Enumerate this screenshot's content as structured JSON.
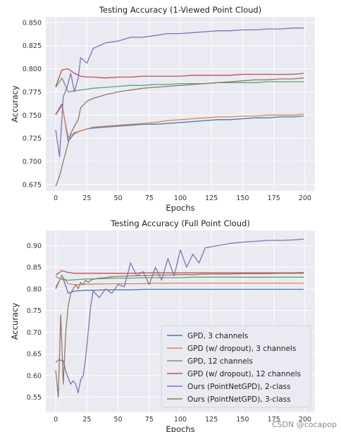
{
  "colors": {
    "bg": "#eaeaf2",
    "grid": "#ffffff",
    "series": [
      "#4c72b0",
      "#dd8452",
      "#55a868",
      "#c44e52",
      "#8172b3",
      "#937860"
    ]
  },
  "watermark": "CSDN @cocapop",
  "chart_data": [
    {
      "type": "line",
      "title": "Testing Accuracy (1-Viewed Point Cloud)",
      "xlabel": "Epochs",
      "ylabel": "Accuracy",
      "xlim": [
        -8,
        208
      ],
      "ylim": [
        0.668,
        0.856
      ],
      "xticks": [
        0,
        25,
        50,
        75,
        100,
        125,
        150,
        175,
        200
      ],
      "xtick_labels": [
        "0",
        "25",
        "50",
        "75",
        "100",
        "125",
        "150",
        "175",
        "200"
      ],
      "yticks": [
        0.675,
        0.7,
        0.725,
        0.75,
        0.775,
        0.8,
        0.825,
        0.85
      ],
      "ytick_labels": [
        "0.675",
        "0.700",
        "0.725",
        "0.750",
        "0.775",
        "0.800",
        "0.825",
        "0.850"
      ],
      "grid": true,
      "legend": "none",
      "series": [
        {
          "key": "gpd3",
          "x": [
            0,
            5,
            10,
            15,
            20,
            25,
            30,
            40,
            50,
            60,
            70,
            80,
            90,
            100,
            110,
            120,
            130,
            140,
            150,
            160,
            170,
            180,
            190,
            199
          ],
          "values": [
            0.751,
            0.762,
            0.722,
            0.73,
            0.733,
            0.735,
            0.736,
            0.737,
            0.738,
            0.739,
            0.74,
            0.74,
            0.741,
            0.742,
            0.743,
            0.744,
            0.745,
            0.745,
            0.746,
            0.747,
            0.747,
            0.748,
            0.748,
            0.749
          ]
        },
        {
          "key": "gpd_drop3",
          "x": [
            0,
            5,
            10,
            15,
            20,
            25,
            30,
            40,
            50,
            60,
            70,
            80,
            90,
            100,
            110,
            120,
            130,
            140,
            150,
            160,
            170,
            180,
            190,
            199
          ],
          "values": [
            0.75,
            0.76,
            0.726,
            0.731,
            0.733,
            0.735,
            0.737,
            0.738,
            0.739,
            0.74,
            0.741,
            0.742,
            0.744,
            0.745,
            0.746,
            0.747,
            0.748,
            0.748,
            0.749,
            0.749,
            0.75,
            0.75,
            0.75,
            0.751
          ]
        },
        {
          "key": "gpd12",
          "x": [
            0,
            5,
            10,
            15,
            20,
            25,
            30,
            40,
            50,
            60,
            70,
            80,
            90,
            100,
            110,
            120,
            130,
            140,
            150,
            160,
            170,
            180,
            190,
            199
          ],
          "values": [
            0.78,
            0.79,
            0.775,
            0.776,
            0.777,
            0.778,
            0.779,
            0.78,
            0.781,
            0.782,
            0.782,
            0.783,
            0.783,
            0.784,
            0.784,
            0.784,
            0.785,
            0.785,
            0.785,
            0.785,
            0.786,
            0.786,
            0.786,
            0.786
          ]
        },
        {
          "key": "gpd_drop12",
          "x": [
            0,
            5,
            10,
            15,
            20,
            25,
            30,
            40,
            50,
            60,
            70,
            80,
            90,
            100,
            110,
            120,
            130,
            140,
            150,
            160,
            170,
            180,
            190,
            199
          ],
          "values": [
            0.781,
            0.799,
            0.8,
            0.795,
            0.792,
            0.791,
            0.791,
            0.79,
            0.791,
            0.791,
            0.792,
            0.792,
            0.792,
            0.792,
            0.793,
            0.793,
            0.793,
            0.793,
            0.794,
            0.794,
            0.794,
            0.794,
            0.794,
            0.795
          ]
        },
        {
          "key": "ours2",
          "x": [
            0,
            3,
            6,
            9,
            12,
            15,
            18,
            20,
            25,
            30,
            40,
            50,
            60,
            70,
            80,
            90,
            100,
            110,
            120,
            130,
            140,
            150,
            160,
            170,
            180,
            190,
            199
          ],
          "values": [
            0.734,
            0.705,
            0.77,
            0.78,
            0.795,
            0.775,
            0.79,
            0.812,
            0.806,
            0.822,
            0.828,
            0.83,
            0.834,
            0.834,
            0.836,
            0.838,
            0.838,
            0.839,
            0.84,
            0.841,
            0.841,
            0.842,
            0.842,
            0.843,
            0.843,
            0.844,
            0.844
          ]
        },
        {
          "key": "ours3",
          "x": [
            0,
            3,
            6,
            9,
            12,
            15,
            18,
            20,
            25,
            30,
            40,
            50,
            60,
            70,
            80,
            90,
            100,
            110,
            120,
            130,
            140,
            150,
            160,
            170,
            180,
            190,
            199
          ],
          "values": [
            0.673,
            0.684,
            0.7,
            0.715,
            0.73,
            0.738,
            0.745,
            0.758,
            0.765,
            0.768,
            0.772,
            0.775,
            0.777,
            0.779,
            0.78,
            0.781,
            0.782,
            0.783,
            0.784,
            0.785,
            0.786,
            0.787,
            0.788,
            0.788,
            0.789,
            0.789,
            0.79
          ]
        }
      ]
    },
    {
      "type": "line",
      "title": "Testing Accuracy (Full Point Cloud)",
      "xlabel": "Epochs",
      "ylabel": "Accuracy",
      "xlim": [
        -8,
        208
      ],
      "ylim": [
        0.515,
        0.935
      ],
      "xticks": [
        0,
        25,
        50,
        75,
        100,
        125,
        150,
        175,
        200
      ],
      "xtick_labels": [
        "0",
        "25",
        "50",
        "75",
        "100",
        "125",
        "150",
        "175",
        "200"
      ],
      "yticks": [
        0.55,
        0.6,
        0.65,
        0.7,
        0.75,
        0.8,
        0.85,
        0.9
      ],
      "ytick_labels": [
        "0.55",
        "0.60",
        "0.65",
        "0.70",
        "0.75",
        "0.80",
        "0.85",
        "0.90"
      ],
      "grid": true,
      "legend": "lower-right",
      "legend_entries": [
        "GPD, 3 channels",
        "GPD (w/ dropout), 3 channels",
        "GPD, 12 channels",
        "GPD (w/ dropout), 12 channels",
        "Ours (PointNetGPD), 2-class",
        "Ours (PointNetGPD), 3-class"
      ],
      "series": [
        {
          "key": "gpd3",
          "x": [
            0,
            5,
            10,
            15,
            20,
            25,
            30,
            40,
            50,
            60,
            70,
            80,
            90,
            100,
            110,
            120,
            130,
            140,
            150,
            160,
            170,
            180,
            190,
            199
          ],
          "values": [
            0.8,
            0.832,
            0.79,
            0.795,
            0.796,
            0.797,
            0.797,
            0.798,
            0.798,
            0.798,
            0.799,
            0.799,
            0.799,
            0.799,
            0.799,
            0.799,
            0.799,
            0.799,
            0.799,
            0.799,
            0.799,
            0.799,
            0.799,
            0.799
          ]
        },
        {
          "key": "gpd_drop3",
          "x": [
            0,
            5,
            10,
            15,
            20,
            25,
            30,
            40,
            50,
            60,
            70,
            80,
            90,
            100,
            110,
            120,
            130,
            140,
            150,
            160,
            170,
            180,
            190,
            199
          ],
          "values": [
            0.805,
            0.83,
            0.812,
            0.81,
            0.81,
            0.811,
            0.811,
            0.812,
            0.812,
            0.812,
            0.812,
            0.813,
            0.813,
            0.813,
            0.813,
            0.813,
            0.813,
            0.813,
            0.813,
            0.813,
            0.813,
            0.813,
            0.813,
            0.813
          ]
        },
        {
          "key": "gpd12",
          "x": [
            0,
            5,
            10,
            15,
            20,
            25,
            30,
            40,
            50,
            60,
            70,
            80,
            90,
            100,
            110,
            120,
            130,
            140,
            150,
            160,
            170,
            180,
            190,
            199
          ],
          "values": [
            0.828,
            0.822,
            0.82,
            0.821,
            0.822,
            0.823,
            0.823,
            0.824,
            0.825,
            0.825,
            0.826,
            0.826,
            0.826,
            0.826,
            0.827,
            0.827,
            0.827,
            0.827,
            0.827,
            0.827,
            0.827,
            0.827,
            0.827,
            0.827
          ]
        },
        {
          "key": "gpd_drop12",
          "x": [
            0,
            5,
            10,
            15,
            20,
            25,
            30,
            40,
            50,
            60,
            70,
            80,
            90,
            100,
            110,
            120,
            130,
            140,
            150,
            160,
            170,
            180,
            190,
            199
          ],
          "values": [
            0.832,
            0.842,
            0.838,
            0.836,
            0.836,
            0.836,
            0.836,
            0.836,
            0.836,
            0.836,
            0.837,
            0.837,
            0.837,
            0.837,
            0.837,
            0.837,
            0.837,
            0.837,
            0.837,
            0.837,
            0.837,
            0.837,
            0.837,
            0.838
          ]
        },
        {
          "key": "ours2",
          "x": [
            0,
            2,
            4,
            6,
            8,
            10,
            12,
            14,
            16,
            18,
            20,
            22,
            24,
            26,
            28,
            30,
            35,
            40,
            45,
            50,
            55,
            60,
            65,
            70,
            75,
            80,
            85,
            90,
            95,
            100,
            105,
            110,
            115,
            120,
            130,
            140,
            150,
            160,
            170,
            180,
            190,
            199
          ],
          "values": [
            0.63,
            0.636,
            0.635,
            0.634,
            0.61,
            0.594,
            0.58,
            0.588,
            0.58,
            0.56,
            0.59,
            0.6,
            0.64,
            0.7,
            0.76,
            0.795,
            0.78,
            0.8,
            0.79,
            0.81,
            0.805,
            0.86,
            0.83,
            0.84,
            0.81,
            0.85,
            0.82,
            0.87,
            0.83,
            0.89,
            0.85,
            0.88,
            0.86,
            0.895,
            0.9,
            0.905,
            0.908,
            0.91,
            0.912,
            0.912,
            0.913,
            0.915
          ]
        },
        {
          "key": "ours3",
          "x": [
            0,
            2,
            4,
            6,
            8,
            10,
            12,
            14,
            16,
            18,
            20,
            22,
            24,
            26,
            28,
            30,
            35,
            40,
            45,
            50,
            60,
            70,
            80,
            90,
            100,
            110,
            120,
            130,
            140,
            150,
            160,
            170,
            180,
            190,
            199
          ],
          "values": [
            0.612,
            0.55,
            0.74,
            0.58,
            0.7,
            0.76,
            0.79,
            0.8,
            0.81,
            0.8,
            0.815,
            0.81,
            0.82,
            0.815,
            0.82,
            0.822,
            0.825,
            0.826,
            0.828,
            0.829,
            0.83,
            0.831,
            0.832,
            0.832,
            0.833,
            0.833,
            0.834,
            0.834,
            0.834,
            0.835,
            0.835,
            0.835,
            0.836,
            0.836,
            0.836
          ]
        }
      ]
    }
  ]
}
